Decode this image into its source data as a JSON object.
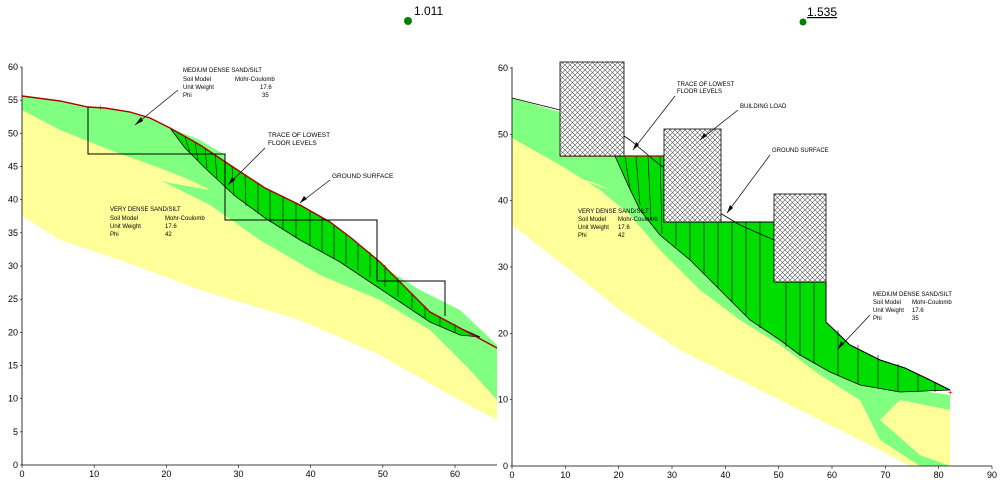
{
  "left_panel": {
    "factor_of_safety": "1.011",
    "y_ticks": [
      "0",
      "5",
      "10",
      "15",
      "20",
      "25",
      "30",
      "35",
      "40",
      "45",
      "50",
      "55",
      "60"
    ],
    "x_ticks": [
      "0",
      "10",
      "20",
      "30",
      "40",
      "50",
      "60"
    ],
    "medium_layer": {
      "title": "MEDIUM DENSE SAND/SILT",
      "rows": [
        {
          "k": "Soil Model",
          "v": "Mohr-Coulomb"
        },
        {
          "k": "Unit Weight",
          "v": "17.6"
        },
        {
          "k": "Phi",
          "v": "35"
        }
      ]
    },
    "dense_layer": {
      "title": "VERY DENSE SAND/SILT",
      "rows": [
        {
          "k": "Soil Model",
          "v": "Mohr-Coulomb"
        },
        {
          "k": "Unit Weight",
          "v": "17.6"
        },
        {
          "k": "Phi",
          "v": "42"
        }
      ]
    },
    "trace_label": [
      "TRACE OF LOWEST",
      "FLOOR LEVELS"
    ],
    "ground_label": "GROUND SURFACE"
  },
  "right_panel": {
    "factor_of_safety": "1.535",
    "y_ticks": [
      "0",
      "10",
      "20",
      "30",
      "40",
      "50",
      "60"
    ],
    "x_ticks": [
      "0",
      "10",
      "20",
      "30",
      "40",
      "50",
      "60",
      "70",
      "80",
      "90"
    ],
    "dense_layer": {
      "title": "VERY DENSE SAND/SILT",
      "rows": [
        {
          "k": "Soil Model",
          "v": "Mohr-Coulomb"
        },
        {
          "k": "Unit Weight",
          "v": "17.6"
        },
        {
          "k": "Phi",
          "v": "42"
        }
      ]
    },
    "medium_layer": {
      "title": "MEDIUM DENSE SAND/SILT",
      "rows": [
        {
          "k": "Soil Model",
          "v": "Mohr-Coulomb"
        },
        {
          "k": "Unit Weight",
          "v": "17.6"
        },
        {
          "k": "Phi",
          "v": "35"
        }
      ]
    },
    "trace_label": [
      "TRACE OF LOWEST",
      "FLOOR LEVELS"
    ],
    "building_label": "BUILDING LOAD",
    "ground_label": "GROUND SURFACE"
  },
  "colors": {
    "dense_soil": "#ffff99",
    "medium_soil": "#80ff80",
    "slip_mass": "#00dd00",
    "ground_line": "#aa0000",
    "fos_marker": "#008000"
  }
}
